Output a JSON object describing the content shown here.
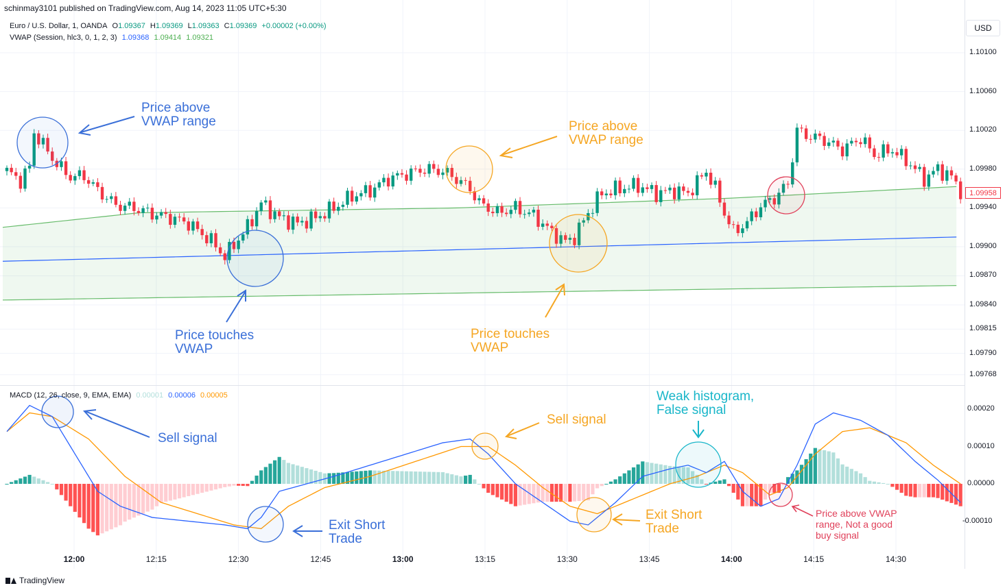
{
  "publisher": "schinmay3101 published on TradingView.com, Aug 14, 2023 11:05 UTC+5:30",
  "legend": {
    "symbol": "Euro / U.S. Dollar, 1, OANDA",
    "o_label": "O",
    "o_value": "1.09367",
    "h_label": "H",
    "h_value": "1.09369",
    "l_label": "L",
    "l_value": "1.09363",
    "c_label": "C",
    "c_value": "1.09369",
    "change": "+0.00002 (+0.00%)",
    "vwap_label": "VWAP (Session, hlc3, 0, 1, 2, 3)",
    "vwap_values": [
      "1.09368",
      "1.09414",
      "1.09321"
    ],
    "macd_label": "MACD (12, 26, close, 9, EMA, EMA)",
    "macd_values": [
      "0.00001",
      "0.00006",
      "0.00005"
    ]
  },
  "currency_button": "USD",
  "last_price": "1.09958",
  "footer": "TradingView",
  "colors": {
    "up": "#089981",
    "down": "#f23645",
    "vwap": "#2962ff",
    "band": "#66bb6a",
    "macd": "#2962ff",
    "signal": "#ff9800",
    "hist_up_strong": "#26a69a",
    "hist_up_weak": "#b2dfdb",
    "hist_down_strong": "#ff5252",
    "hist_down_weak": "#ffcdd2"
  },
  "annotations": {
    "blue_price_above": "Price above\nVWAP range",
    "blue_price_touches": "Price touches\nVWAP",
    "orange_price_above": "Price above\nVWAP range",
    "orange_price_touches": "Price touches\nVWAP",
    "blue_sell": "Sell signal",
    "orange_sell": "Sell signal",
    "blue_exit": "Exit Short\nTrade",
    "orange_exit": "Exit Short\nTrade",
    "cyan_weak": "Weak histogram,\nFalse signal",
    "red_note": "Price above VWAP\nrange, Not a good\nbuy signal"
  },
  "chart_data": [
    {
      "type": "candlestick",
      "title": "Euro / U.S. Dollar, 1, OANDA",
      "ylim": [
        1.0976,
        1.1012
      ],
      "y_ticks": [
        "1.10100",
        "1.10060",
        "1.10020",
        "1.09980",
        "1.09940",
        "1.09900",
        "1.09870",
        "1.09840",
        "1.09815",
        "1.09790",
        "1.09768"
      ],
      "x_ticks": [
        "12:00",
        "12:15",
        "12:30",
        "12:45",
        "13:00",
        "13:15",
        "13:30",
        "13:45",
        "14:00",
        "14:15",
        "14:30"
      ],
      "close_anchors": [
        [
          0,
          1.09978
        ],
        [
          3,
          1.09968
        ],
        [
          5,
          1.09982
        ],
        [
          6,
          1.10018
        ],
        [
          8,
          1.10005
        ],
        [
          11,
          1.09985
        ],
        [
          14,
          1.09972
        ],
        [
          17,
          1.09973
        ],
        [
          20,
          1.09958
        ],
        [
          24,
          1.09943
        ],
        [
          28,
          1.0994
        ],
        [
          32,
          1.09934
        ],
        [
          36,
          1.0993
        ],
        [
          40,
          1.09924
        ],
        [
          45,
          1.09906
        ],
        [
          48,
          1.0989
        ],
        [
          50,
          1.09902
        ],
        [
          53,
          1.0992
        ],
        [
          56,
          1.09945
        ],
        [
          60,
          1.0993
        ],
        [
          64,
          1.09924
        ],
        [
          68,
          1.0993
        ],
        [
          72,
          1.0994
        ],
        [
          76,
          1.09952
        ],
        [
          80,
          1.09958
        ],
        [
          84,
          1.0997
        ],
        [
          88,
          1.09975
        ],
        [
          92,
          1.0998
        ],
        [
          96,
          1.09978
        ],
        [
          99,
          1.0997
        ],
        [
          102,
          1.0996
        ],
        [
          104,
          1.09945
        ],
        [
          108,
          1.09935
        ],
        [
          112,
          1.0994
        ],
        [
          116,
          1.09932
        ],
        [
          120,
          1.09915
        ],
        [
          123,
          1.09905
        ],
        [
          125,
          1.0991
        ],
        [
          128,
          1.09935
        ],
        [
          131,
          1.09955
        ],
        [
          135,
          1.0996
        ],
        [
          139,
          1.09963
        ],
        [
          143,
          1.09955
        ],
        [
          147,
          1.09958
        ],
        [
          150,
          1.09955
        ],
        [
          154,
          1.09978
        ],
        [
          156,
          1.0996
        ],
        [
          158,
          1.09935
        ],
        [
          160,
          1.09915
        ],
        [
          163,
          1.09925
        ],
        [
          166,
          1.09942
        ],
        [
          169,
          1.0995
        ],
        [
          172,
          1.09965
        ],
        [
          174,
          1.1002
        ],
        [
          176,
          1.10015
        ],
        [
          180,
          1.1001
        ],
        [
          184,
          1.1
        ],
        [
          188,
          1.10012
        ],
        [
          191,
          1.09995
        ],
        [
          195,
          1.1
        ],
        [
          199,
          1.09985
        ],
        [
          202,
          1.0997
        ],
        [
          205,
          1.0998
        ],
        [
          208,
          1.09972
        ],
        [
          210,
          1.09958
        ]
      ],
      "vwap": [
        [
          0,
          1.09885
        ],
        [
          210,
          1.0991
        ]
      ],
      "upper_band": [
        [
          0,
          1.0992
        ],
        [
          30,
          1.09935
        ],
        [
          100,
          1.0994
        ],
        [
          160,
          1.0995
        ],
        [
          210,
          1.09962
        ]
      ],
      "lower_band": [
        [
          0,
          1.09845
        ],
        [
          210,
          1.0986
        ]
      ]
    },
    {
      "type": "line",
      "title": "MACD (12, 26, close, 9, EMA, EMA)",
      "ylim": [
        -0.00017,
        0.00027
      ],
      "y_ticks": [
        "0.00020",
        "0.00010",
        "0.00000",
        "-0.00010"
      ],
      "series": [
        {
          "name": "MACD",
          "points": [
            [
              0,
              0.00014
            ],
            [
              5,
              0.00021
            ],
            [
              10,
              0.00018
            ],
            [
              15,
              8e-05
            ],
            [
              20,
              -2e-05
            ],
            [
              25,
              -6e-05
            ],
            [
              32,
              -9e-05
            ],
            [
              40,
              -0.0001
            ],
            [
              48,
              -0.00011
            ],
            [
              53,
              -0.00012
            ],
            [
              56,
              -9e-05
            ],
            [
              60,
              -2e-05
            ],
            [
              66,
              0.0
            ],
            [
              72,
              2e-05
            ],
            [
              80,
              5e-05
            ],
            [
              88,
              8e-05
            ],
            [
              96,
              0.00011
            ],
            [
              102,
              0.00012
            ],
            [
              106,
              8e-05
            ],
            [
              112,
              0.0
            ],
            [
              118,
              -5e-05
            ],
            [
              124,
              -0.0001
            ],
            [
              128,
              -0.00011
            ],
            [
              134,
              -5e-05
            ],
            [
              140,
              2e-05
            ],
            [
              146,
              4e-05
            ],
            [
              150,
              5e-05
            ],
            [
              154,
              3e-05
            ],
            [
              158,
              6e-05
            ],
            [
              162,
              -2e-05
            ],
            [
              166,
              -6e-05
            ],
            [
              170,
              -4e-05
            ],
            [
              174,
              5e-05
            ],
            [
              178,
              0.00016
            ],
            [
              182,
              0.00019
            ],
            [
              188,
              0.00017
            ],
            [
              194,
              0.00013
            ],
            [
              200,
              6e-05
            ],
            [
              205,
              1e-05
            ],
            [
              210,
              -5e-05
            ]
          ]
        },
        {
          "name": "Signal",
          "points": [
            [
              0,
              0.00014
            ],
            [
              5,
              0.00019
            ],
            [
              10,
              0.00018
            ],
            [
              18,
              0.00012
            ],
            [
              26,
              2e-05
            ],
            [
              34,
              -5e-05
            ],
            [
              42,
              -8e-05
            ],
            [
              50,
              -0.00011
            ],
            [
              56,
              -0.00012
            ],
            [
              62,
              -6e-05
            ],
            [
              70,
              -1e-05
            ],
            [
              80,
              2e-05
            ],
            [
              90,
              6e-05
            ],
            [
              100,
              0.0001
            ],
            [
              106,
              0.0001
            ],
            [
              112,
              5e-05
            ],
            [
              118,
              -1e-05
            ],
            [
              124,
              -6e-05
            ],
            [
              130,
              -8e-05
            ],
            [
              138,
              -4e-05
            ],
            [
              146,
              0.0
            ],
            [
              152,
              2e-05
            ],
            [
              158,
              5e-05
            ],
            [
              162,
              3e-05
            ],
            [
              168,
              -3e-05
            ],
            [
              172,
              -1e-05
            ],
            [
              178,
              8e-05
            ],
            [
              184,
              0.00014
            ],
            [
              190,
              0.00015
            ],
            [
              198,
              0.00011
            ],
            [
              204,
              5e-05
            ],
            [
              210,
              0.0
            ]
          ]
        }
      ]
    }
  ]
}
